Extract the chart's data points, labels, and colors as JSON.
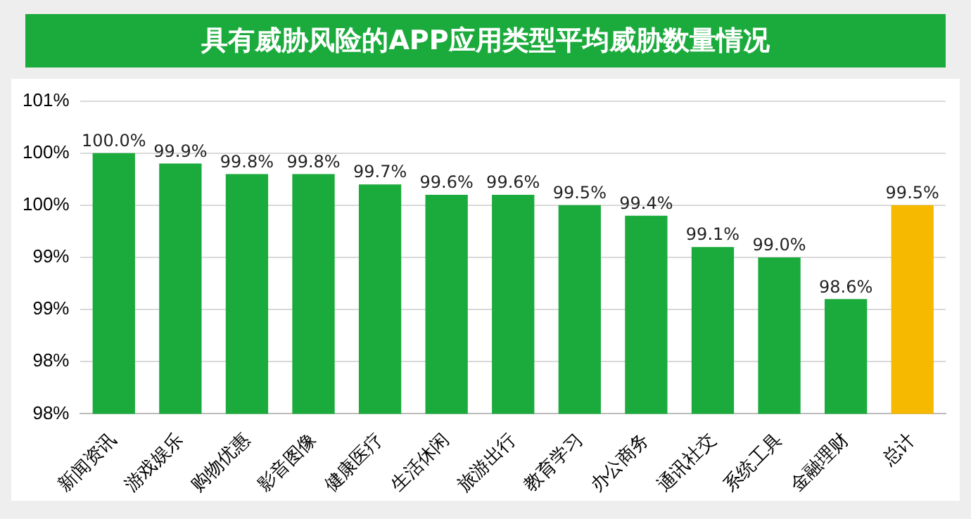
{
  "chart_data": {
    "type": "bar",
    "title": "具有威胁风险的APP应用类型平均威胁数量情况",
    "categories": [
      "新闻资讯",
      "游戏娱乐",
      "购物优惠",
      "影音图像",
      "健康医疗",
      "生活休闲",
      "旅游出行",
      "教育学习",
      "办公商务",
      "通讯社交",
      "系统工具",
      "金融理财",
      "总计"
    ],
    "values": [
      100.0,
      99.9,
      99.8,
      99.8,
      99.7,
      99.6,
      99.6,
      99.5,
      99.4,
      99.1,
      99.0,
      98.6,
      99.5
    ],
    "value_labels": [
      "100.0%",
      "99.9%",
      "99.8%",
      "99.8%",
      "99.7%",
      "99.6%",
      "99.6%",
      "99.5%",
      "99.4%",
      "99.1%",
      "99.0%",
      "98.6%",
      "99.5%"
    ],
    "colors": [
      "#1bab3c",
      "#1bab3c",
      "#1bab3c",
      "#1bab3c",
      "#1bab3c",
      "#1bab3c",
      "#1bab3c",
      "#1bab3c",
      "#1bab3c",
      "#1bab3c",
      "#1bab3c",
      "#1bab3c",
      "#f6b900"
    ],
    "ylim": [
      97.5,
      100.5
    ],
    "yticks": [
      {
        "value": 97.5,
        "label": "98%"
      },
      {
        "value": 98,
        "label": "98%"
      },
      {
        "value": 98.5,
        "label": "99%"
      },
      {
        "value": 99,
        "label": "99%"
      },
      {
        "value": 99.5,
        "label": "100%"
      },
      {
        "value": 100,
        "label": "100%"
      },
      {
        "value": 100.5,
        "label": "101%"
      }
    ],
    "grid": "y"
  }
}
